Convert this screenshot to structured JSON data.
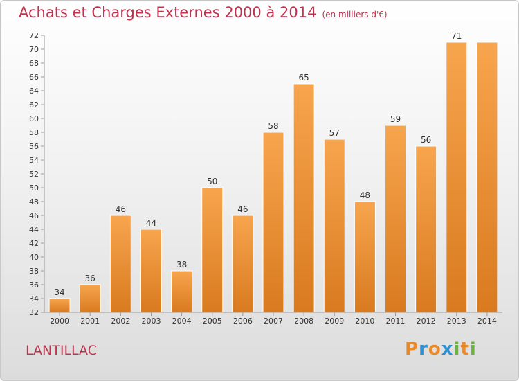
{
  "header": {
    "title": "Achats et Charges Externes 2000 à 2014",
    "unit": "(en milliers d'€)"
  },
  "commune": "LANTILLAC",
  "logo": {
    "letters": [
      "P",
      "r",
      "o",
      "x",
      "i",
      "t",
      "i"
    ],
    "colors": [
      "#e8892b",
      "#2f8fd1",
      "#e8892b",
      "#2f8fd1",
      "#6cb33e",
      "#e8892b",
      "#6cb33e"
    ]
  },
  "colors": {
    "bar_light": "#f7a54e",
    "bar_dark": "#d97a1f",
    "title": "#c0334e"
  },
  "chart_data": {
    "type": "bar",
    "title": "Achats et Charges Externes 2000 à 2014",
    "categories": [
      "2000",
      "2001",
      "2002",
      "2003",
      "2004",
      "2005",
      "2006",
      "2007",
      "2008",
      "2009",
      "2010",
      "2011",
      "2012",
      "2013",
      "2014"
    ],
    "values": [
      34,
      36,
      46,
      44,
      38,
      50,
      46,
      58,
      65,
      57,
      48,
      59,
      56,
      71,
      71
    ],
    "value_labels": [
      "34",
      "36",
      "46",
      "44",
      "38",
      "50",
      "46",
      "58",
      "65",
      "57",
      "48",
      "59",
      "56",
      "71",
      ""
    ],
    "ylim": [
      32,
      72
    ],
    "yticks": [
      32,
      34,
      36,
      38,
      40,
      42,
      44,
      46,
      48,
      50,
      52,
      54,
      56,
      58,
      60,
      62,
      64,
      66,
      68,
      70,
      72
    ],
    "grid": false
  }
}
